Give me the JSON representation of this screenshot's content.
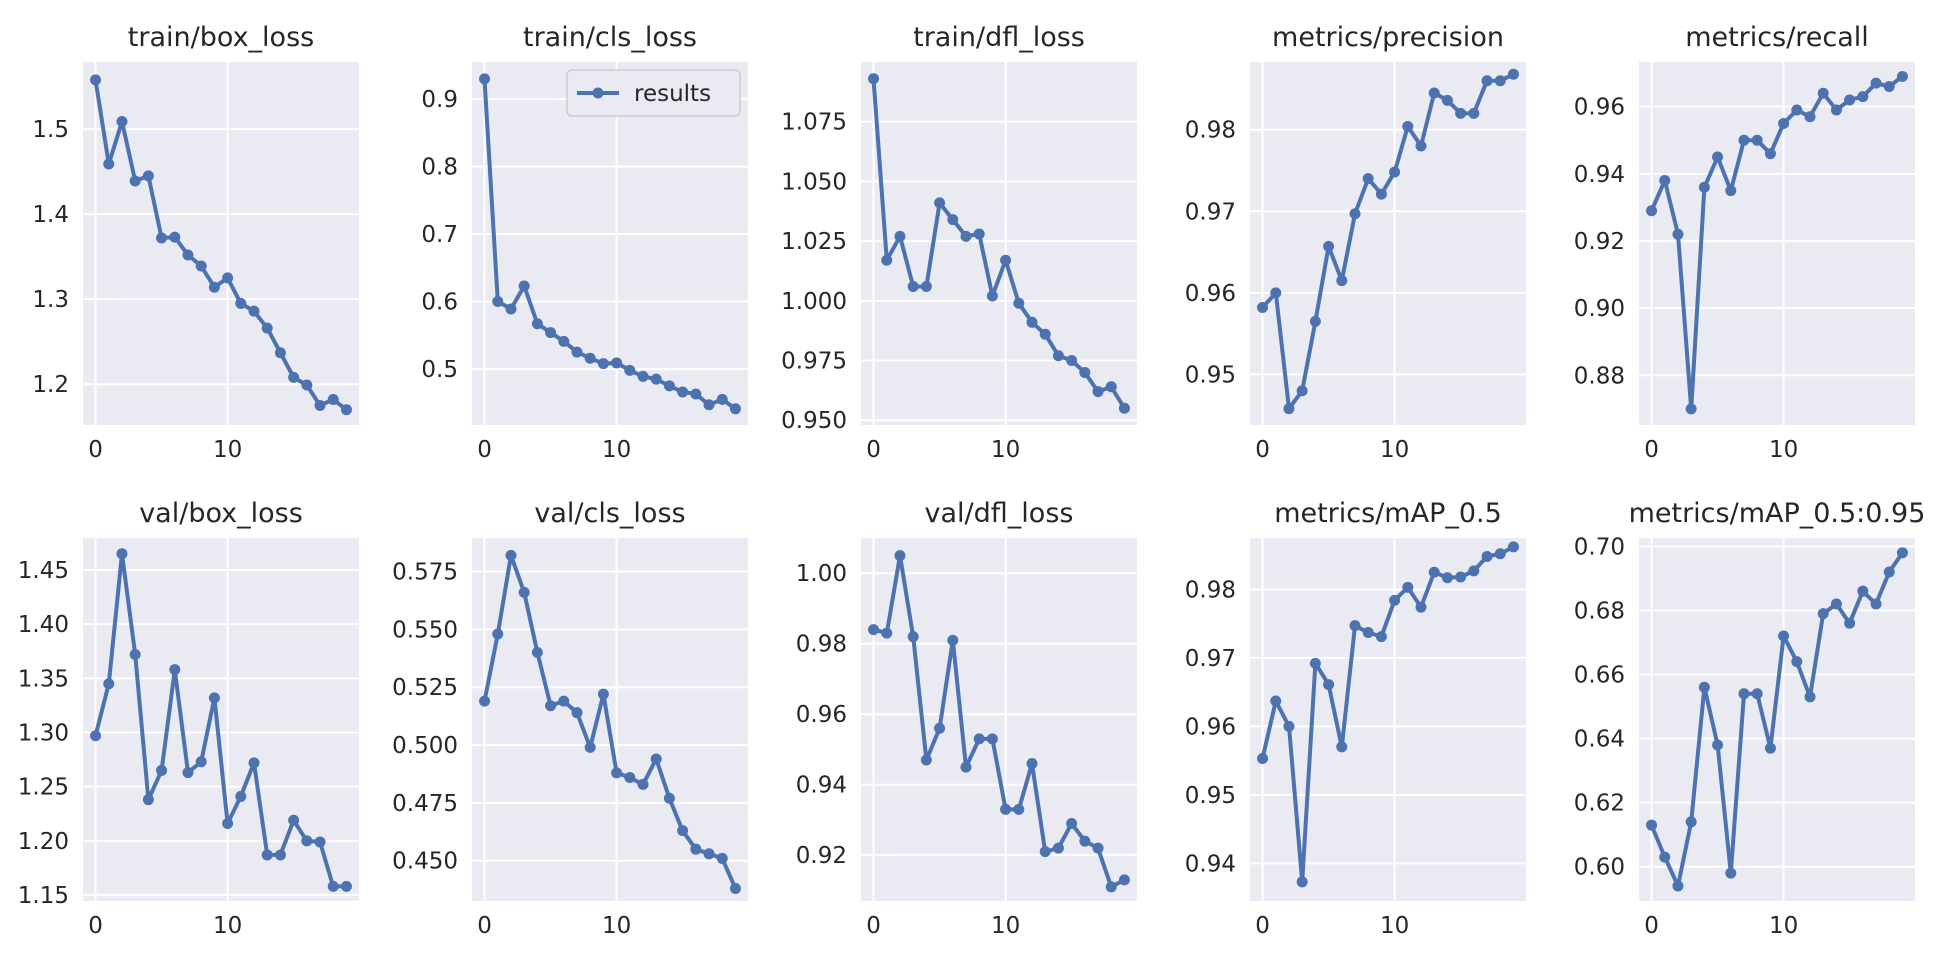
{
  "figure": {
    "background": "#ffffff",
    "panel_background": "#eaeaf2",
    "grid_color": "#ffffff",
    "line_color": "#4c72b0"
  },
  "legend": {
    "label": "results",
    "panel": 1,
    "placement": "upper-right"
  },
  "chart_data": [
    {
      "type": "line",
      "title": "train/box_loss",
      "xlabel": "",
      "ylabel": "",
      "x": [
        0,
        1,
        2,
        3,
        4,
        5,
        6,
        7,
        8,
        9,
        10,
        11,
        12,
        13,
        14,
        15,
        16,
        17,
        18,
        19
      ],
      "xticks": [
        0,
        10
      ],
      "xlim": [
        -0.95,
        19.95
      ],
      "yticks": [
        1.2,
        1.3,
        1.4,
        1.5
      ],
      "ytick_labels": [
        "1.2",
        "1.3",
        "1.4",
        "1.5"
      ],
      "ylim": [
        1.152,
        1.579
      ],
      "series": [
        {
          "name": "results",
          "values": [
            1.558,
            1.459,
            1.509,
            1.439,
            1.445,
            1.372,
            1.373,
            1.352,
            1.339,
            1.314,
            1.325,
            1.295,
            1.286,
            1.266,
            1.237,
            1.208,
            1.199,
            1.175,
            1.182,
            1.17
          ]
        }
      ]
    },
    {
      "type": "line",
      "title": "train/cls_loss",
      "xlabel": "",
      "ylabel": "",
      "x": [
        0,
        1,
        2,
        3,
        4,
        5,
        6,
        7,
        8,
        9,
        10,
        11,
        12,
        13,
        14,
        15,
        16,
        17,
        18,
        19
      ],
      "xticks": [
        0,
        10
      ],
      "xlim": [
        -0.95,
        19.95
      ],
      "yticks": [
        0.5,
        0.6,
        0.7,
        0.8,
        0.9
      ],
      "ytick_labels": [
        "0.5",
        "0.6",
        "0.7",
        "0.8",
        "0.9"
      ],
      "ylim": [
        0.417,
        0.955
      ],
      "series": [
        {
          "name": "results",
          "values": [
            0.93,
            0.6,
            0.589,
            0.623,
            0.567,
            0.554,
            0.541,
            0.525,
            0.516,
            0.508,
            0.509,
            0.498,
            0.489,
            0.485,
            0.475,
            0.466,
            0.463,
            0.447,
            0.455,
            0.441
          ]
        }
      ]
    },
    {
      "type": "line",
      "title": "train/dfl_loss",
      "xlabel": "",
      "ylabel": "",
      "x": [
        0,
        1,
        2,
        3,
        4,
        5,
        6,
        7,
        8,
        9,
        10,
        11,
        12,
        13,
        14,
        15,
        16,
        17,
        18,
        19
      ],
      "xticks": [
        0,
        10
      ],
      "xlim": [
        -0.95,
        19.95
      ],
      "yticks": [
        0.95,
        0.975,
        1.0,
        1.025,
        1.05,
        1.075
      ],
      "ytick_labels": [
        "0.950",
        "0.975",
        "1.000",
        "1.025",
        "1.050",
        "1.075"
      ],
      "ylim": [
        0.948,
        1.1
      ],
      "series": [
        {
          "name": "results",
          "values": [
            1.093,
            1.017,
            1.027,
            1.006,
            1.006,
            1.041,
            1.034,
            1.027,
            1.028,
            1.002,
            1.017,
            0.999,
            0.991,
            0.986,
            0.977,
            0.975,
            0.97,
            0.962,
            0.964,
            0.955
          ]
        }
      ]
    },
    {
      "type": "line",
      "title": "metrics/precision",
      "xlabel": "",
      "ylabel": "",
      "x": [
        0,
        1,
        2,
        3,
        4,
        5,
        6,
        7,
        8,
        9,
        10,
        11,
        12,
        13,
        14,
        15,
        16,
        17,
        18,
        19
      ],
      "xticks": [
        0,
        10
      ],
      "xlim": [
        -0.95,
        19.95
      ],
      "yticks": [
        0.95,
        0.96,
        0.97,
        0.98
      ],
      "ytick_labels": [
        "0.95",
        "0.96",
        "0.97",
        "0.98"
      ],
      "ylim": [
        0.9438,
        0.9883
      ],
      "series": [
        {
          "name": "results",
          "values": [
            0.9582,
            0.96,
            0.9458,
            0.948,
            0.9565,
            0.9657,
            0.9615,
            0.9697,
            0.974,
            0.9721,
            0.9748,
            0.9804,
            0.978,
            0.9845,
            0.9836,
            0.982,
            0.982,
            0.986,
            0.986,
            0.9868
          ]
        }
      ]
    },
    {
      "type": "line",
      "title": "metrics/recall",
      "xlabel": "",
      "ylabel": "",
      "x": [
        0,
        1,
        2,
        3,
        4,
        5,
        6,
        7,
        8,
        9,
        10,
        11,
        12,
        13,
        14,
        15,
        16,
        17,
        18,
        19
      ],
      "xticks": [
        0,
        10
      ],
      "xlim": [
        -0.95,
        19.95
      ],
      "yticks": [
        0.88,
        0.9,
        0.92,
        0.94,
        0.96
      ],
      "ytick_labels": [
        "0.88",
        "0.90",
        "0.92",
        "0.94",
        "0.96"
      ],
      "ylim": [
        0.8652,
        0.9733
      ],
      "series": [
        {
          "name": "results",
          "values": [
            0.929,
            0.938,
            0.922,
            0.87,
            0.936,
            0.945,
            0.935,
            0.95,
            0.95,
            0.946,
            0.955,
            0.959,
            0.957,
            0.964,
            0.959,
            0.962,
            0.963,
            0.967,
            0.966,
            0.969
          ]
        }
      ]
    },
    {
      "type": "line",
      "title": "val/box_loss",
      "xlabel": "",
      "ylabel": "",
      "x": [
        0,
        1,
        2,
        3,
        4,
        5,
        6,
        7,
        8,
        9,
        10,
        11,
        12,
        13,
        14,
        15,
        16,
        17,
        18,
        19
      ],
      "xticks": [
        0,
        10
      ],
      "xlim": [
        -0.95,
        19.95
      ],
      "yticks": [
        1.15,
        1.2,
        1.25,
        1.3,
        1.35,
        1.4,
        1.45
      ],
      "ytick_labels": [
        "1.15",
        "1.20",
        "1.25",
        "1.30",
        "1.35",
        "1.40",
        "1.45"
      ],
      "ylim": [
        1.1445,
        1.4795
      ],
      "series": [
        {
          "name": "results",
          "values": [
            1.297,
            1.345,
            1.465,
            1.372,
            1.238,
            1.265,
            1.358,
            1.263,
            1.273,
            1.332,
            1.216,
            1.241,
            1.272,
            1.187,
            1.187,
            1.219,
            1.2,
            1.199,
            1.158,
            1.158
          ]
        }
      ]
    },
    {
      "type": "line",
      "title": "val/cls_loss",
      "xlabel": "",
      "ylabel": "",
      "x": [
        0,
        1,
        2,
        3,
        4,
        5,
        6,
        7,
        8,
        9,
        10,
        11,
        12,
        13,
        14,
        15,
        16,
        17,
        18,
        19
      ],
      "xticks": [
        0,
        10
      ],
      "xlim": [
        -0.95,
        19.95
      ],
      "yticks": [
        0.45,
        0.475,
        0.5,
        0.525,
        0.55,
        0.575
      ],
      "ytick_labels": [
        "0.450",
        "0.475",
        "0.500",
        "0.525",
        "0.550",
        "0.575"
      ],
      "ylim": [
        0.4326,
        0.5895
      ],
      "series": [
        {
          "name": "results",
          "values": [
            0.519,
            0.548,
            0.582,
            0.566,
            0.54,
            0.517,
            0.519,
            0.514,
            0.499,
            0.522,
            0.488,
            0.486,
            0.483,
            0.494,
            0.477,
            0.463,
            0.455,
            0.453,
            0.451,
            0.438
          ]
        }
      ]
    },
    {
      "type": "line",
      "title": "val/dfl_loss",
      "xlabel": "",
      "ylabel": "",
      "x": [
        0,
        1,
        2,
        3,
        4,
        5,
        6,
        7,
        8,
        9,
        10,
        11,
        12,
        13,
        14,
        15,
        16,
        17,
        18,
        19
      ],
      "xticks": [
        0,
        10
      ],
      "xlim": [
        -0.95,
        19.95
      ],
      "yticks": [
        0.92,
        0.94,
        0.96,
        0.98,
        1.0
      ],
      "ytick_labels": [
        "0.92",
        "0.94",
        "0.96",
        "0.98",
        "1.00"
      ],
      "ylim": [
        0.907,
        1.01
      ],
      "series": [
        {
          "name": "results",
          "values": [
            0.984,
            0.983,
            1.005,
            0.982,
            0.947,
            0.956,
            0.981,
            0.945,
            0.953,
            0.953,
            0.933,
            0.933,
            0.946,
            0.921,
            0.922,
            0.929,
            0.924,
            0.922,
            0.911,
            0.913
          ]
        }
      ]
    },
    {
      "type": "line",
      "title": "metrics/mAP_0.5",
      "xlabel": "",
      "ylabel": "",
      "x": [
        0,
        1,
        2,
        3,
        4,
        5,
        6,
        7,
        8,
        9,
        10,
        11,
        12,
        13,
        14,
        15,
        16,
        17,
        18,
        19
      ],
      "xticks": [
        0,
        10
      ],
      "xlim": [
        -0.95,
        19.95
      ],
      "yticks": [
        0.94,
        0.95,
        0.96,
        0.97,
        0.98
      ],
      "ytick_labels": [
        "0.94",
        "0.95",
        "0.96",
        "0.97",
        "0.98"
      ],
      "ylim": [
        0.9345,
        0.9875
      ],
      "series": [
        {
          "name": "results",
          "values": [
            0.9553,
            0.9637,
            0.96,
            0.9373,
            0.9692,
            0.9661,
            0.957,
            0.9747,
            0.9737,
            0.9731,
            0.9784,
            0.9803,
            0.9774,
            0.9825,
            0.9817,
            0.9818,
            0.9827,
            0.9848,
            0.9852,
            0.9862
          ]
        }
      ]
    },
    {
      "type": "line",
      "title": "metrics/mAP_0.5:0.95",
      "xlabel": "",
      "ylabel": "",
      "x": [
        0,
        1,
        2,
        3,
        4,
        5,
        6,
        7,
        8,
        9,
        10,
        11,
        12,
        13,
        14,
        15,
        16,
        17,
        18,
        19
      ],
      "xticks": [
        0,
        10
      ],
      "xlim": [
        -0.95,
        19.95
      ],
      "yticks": [
        0.6,
        0.62,
        0.64,
        0.66,
        0.68,
        0.7
      ],
      "ytick_labels": [
        "0.60",
        "0.62",
        "0.64",
        "0.66",
        "0.68",
        "0.70"
      ],
      "ylim": [
        0.5893,
        0.7026
      ],
      "series": [
        {
          "name": "results",
          "values": [
            0.613,
            0.603,
            0.594,
            0.614,
            0.656,
            0.638,
            0.598,
            0.654,
            0.654,
            0.637,
            0.672,
            0.664,
            0.653,
            0.679,
            0.682,
            0.676,
            0.686,
            0.682,
            0.692,
            0.698
          ]
        }
      ]
    }
  ]
}
